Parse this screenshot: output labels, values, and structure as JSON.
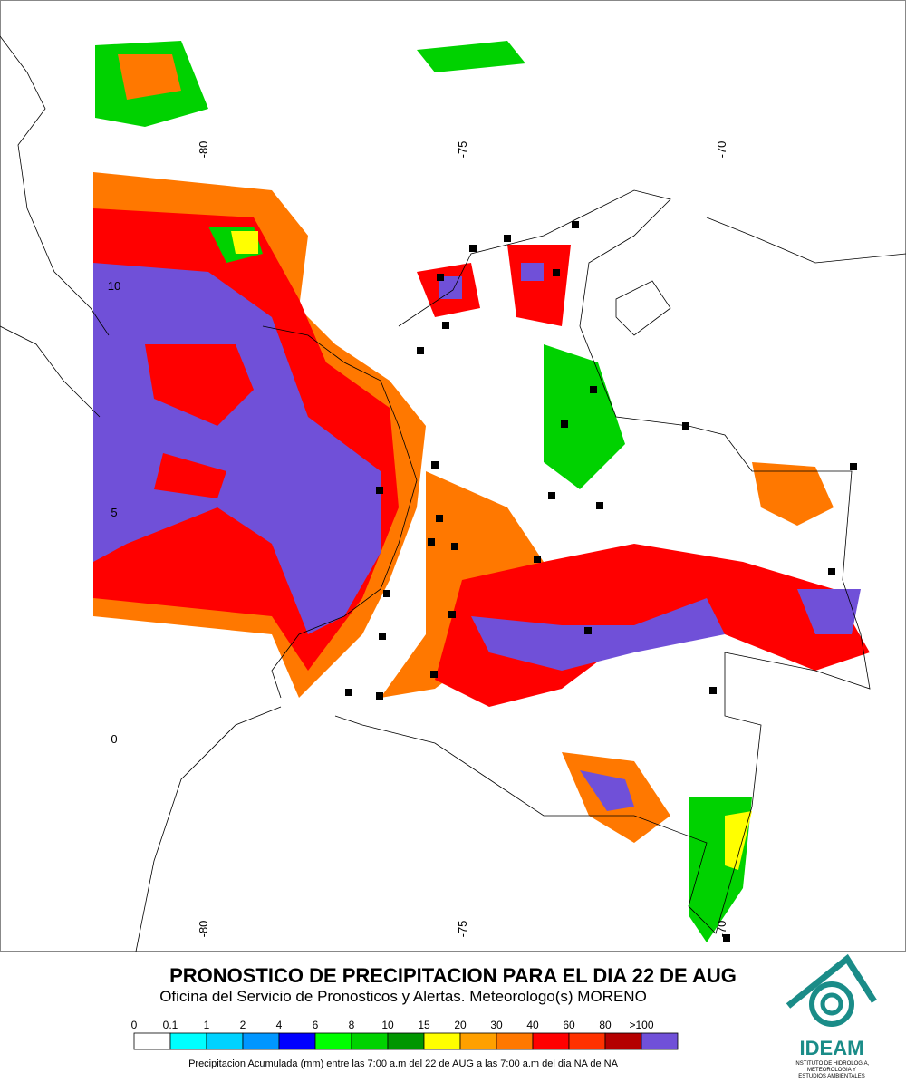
{
  "map": {
    "lon_labels": [
      -80,
      -75,
      -70
    ],
    "lat_labels": [
      10,
      5,
      0
    ],
    "title": "PRONOSTICO DE PRECIPITACION PARA EL DIA 22 DE AUG",
    "subtitle": "Oficina del Servicio de Pronosticos y Alertas. Meteorologo(s) MORENO",
    "legend": {
      "labels": [
        "0",
        "0.1",
        "1",
        "2",
        "4",
        "6",
        "8",
        "10",
        "15",
        "20",
        "30",
        "40",
        "60",
        "80",
        ">100"
      ],
      "colors": [
        "#ffffff",
        "#00ffff",
        "#00d2ff",
        "#0096ff",
        "#0000ff",
        "#00ff00",
        "#00d200",
        "#009600",
        "#ffff00",
        "#ffa000",
        "#ff7800",
        "#ff0000",
        "#ff3200",
        "#b40000",
        "#7050d8"
      ]
    },
    "footnote": "Precipitacion Acumulada (mm) entre las 7:00 a.m del 22 de AUG a las 7:00 a.m del dia NA de NA",
    "logo": {
      "name": "IDEAM",
      "lines": [
        "INSTITUTO DE HIDROLOGIA,",
        "METEOROLOGIA Y",
        "ESTUDIOS AMBIENTALES"
      ]
    }
  }
}
